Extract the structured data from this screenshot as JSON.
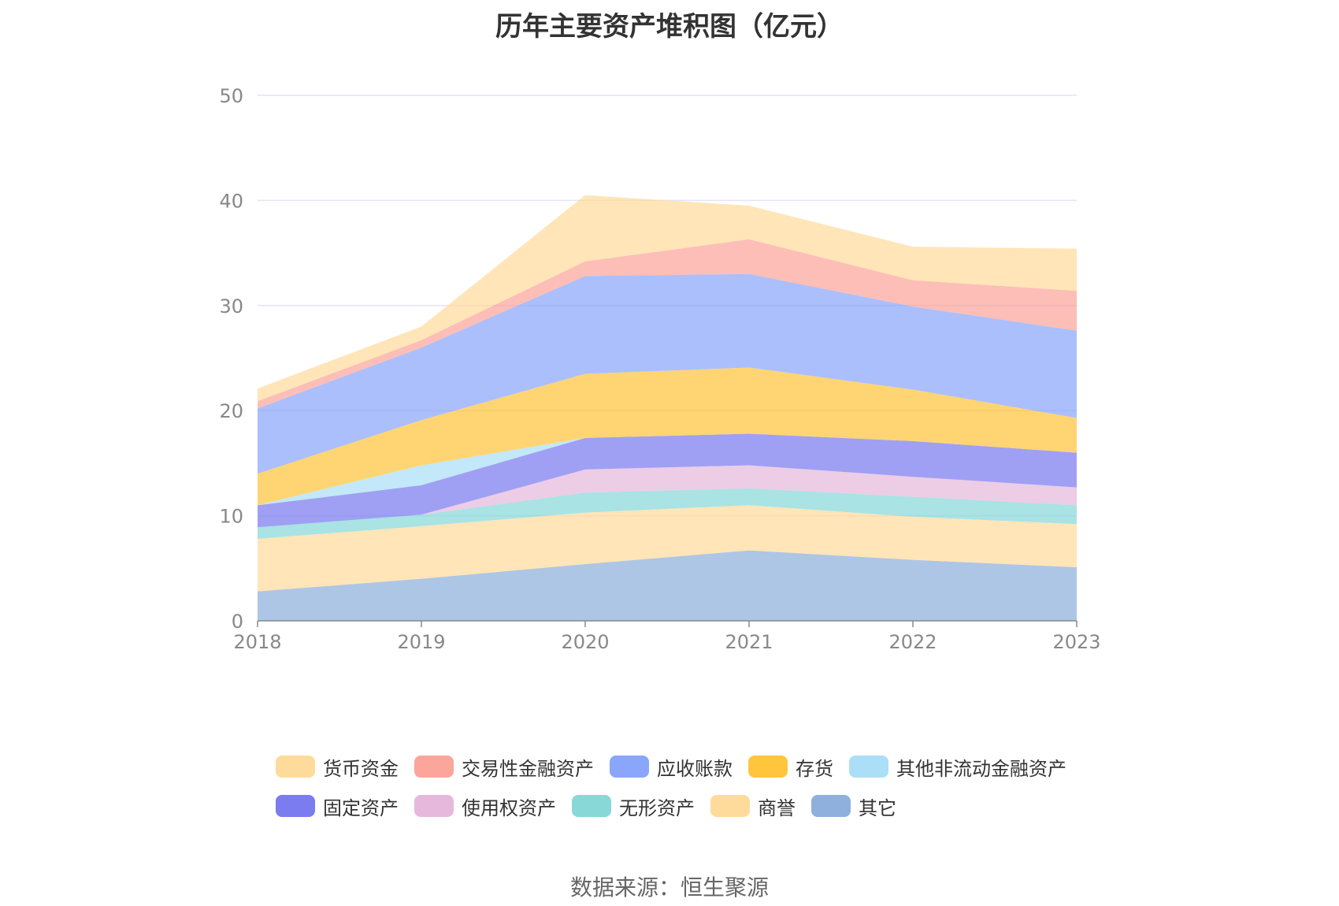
{
  "chart_data": {
    "type": "area",
    "stacked": true,
    "title": "历年主要资产堆积图（亿元）",
    "x": [
      "2018",
      "2019",
      "2020",
      "2021",
      "2022",
      "2023"
    ],
    "y_ticks": [
      "0",
      "10",
      "20",
      "30",
      "40",
      "50"
    ],
    "ylim": [
      0,
      50
    ],
    "grid": true,
    "legend_position": "bottom",
    "series": [
      {
        "name": "其它",
        "color": "#8fb0dc",
        "values": [
          2.8,
          4.0,
          5.4,
          6.7,
          5.8,
          5.1
        ]
      },
      {
        "name": "商誉",
        "color": "#ffdb9b",
        "values": [
          5.0,
          5.0,
          4.9,
          4.3,
          4.1,
          4.1
        ]
      },
      {
        "name": "无形资产",
        "color": "#88d8d8",
        "values": [
          1.1,
          1.1,
          1.9,
          1.6,
          1.9,
          1.8
        ]
      },
      {
        "name": "使用权资产",
        "color": "#e6b9dc",
        "values": [
          0.0,
          0.0,
          2.2,
          2.2,
          1.9,
          1.7
        ]
      },
      {
        "name": "固定资产",
        "color": "#7a7cef",
        "values": [
          2.1,
          2.8,
          3.0,
          3.0,
          3.4,
          3.3
        ]
      },
      {
        "name": "其他非流动金融资产",
        "color": "#aadff7",
        "values": [
          0.0,
          1.9,
          0.0,
          0.0,
          0.0,
          0.0
        ]
      },
      {
        "name": "存货",
        "color": "#ffc53d",
        "values": [
          3.0,
          4.3,
          6.1,
          6.3,
          4.9,
          3.3
        ]
      },
      {
        "name": "应收账款",
        "color": "#8aa6fb",
        "values": [
          6.2,
          6.9,
          9.3,
          8.9,
          7.9,
          8.3
        ]
      },
      {
        "name": "交易性金融资产",
        "color": "#fba59b",
        "values": [
          0.7,
          0.7,
          1.4,
          3.3,
          2.5,
          3.8
        ]
      },
      {
        "name": "货币资金",
        "color": "#ffdb9b",
        "values": [
          1.2,
          1.3,
          6.3,
          3.2,
          3.2,
          4.0
        ]
      }
    ]
  },
  "legend": {
    "row1": [
      {
        "name": "货币资金",
        "color": "#ffdb9b"
      },
      {
        "name": "交易性金融资产",
        "color": "#fba59b"
      },
      {
        "name": "应收账款",
        "color": "#8aa6fb"
      },
      {
        "name": "存货",
        "color": "#ffc53d"
      },
      {
        "name": "其他非流动金融资产",
        "color": "#aadff7"
      }
    ],
    "row2": [
      {
        "name": "固定资产",
        "color": "#7a7cef"
      },
      {
        "name": "使用权资产",
        "color": "#e6b9dc"
      },
      {
        "name": "无形资产",
        "color": "#88d8d8"
      },
      {
        "name": "商誉",
        "color": "#ffdb9b"
      },
      {
        "name": "其它",
        "color": "#8fb0dc"
      }
    ]
  },
  "source_text": "数据来源：恒生聚源"
}
